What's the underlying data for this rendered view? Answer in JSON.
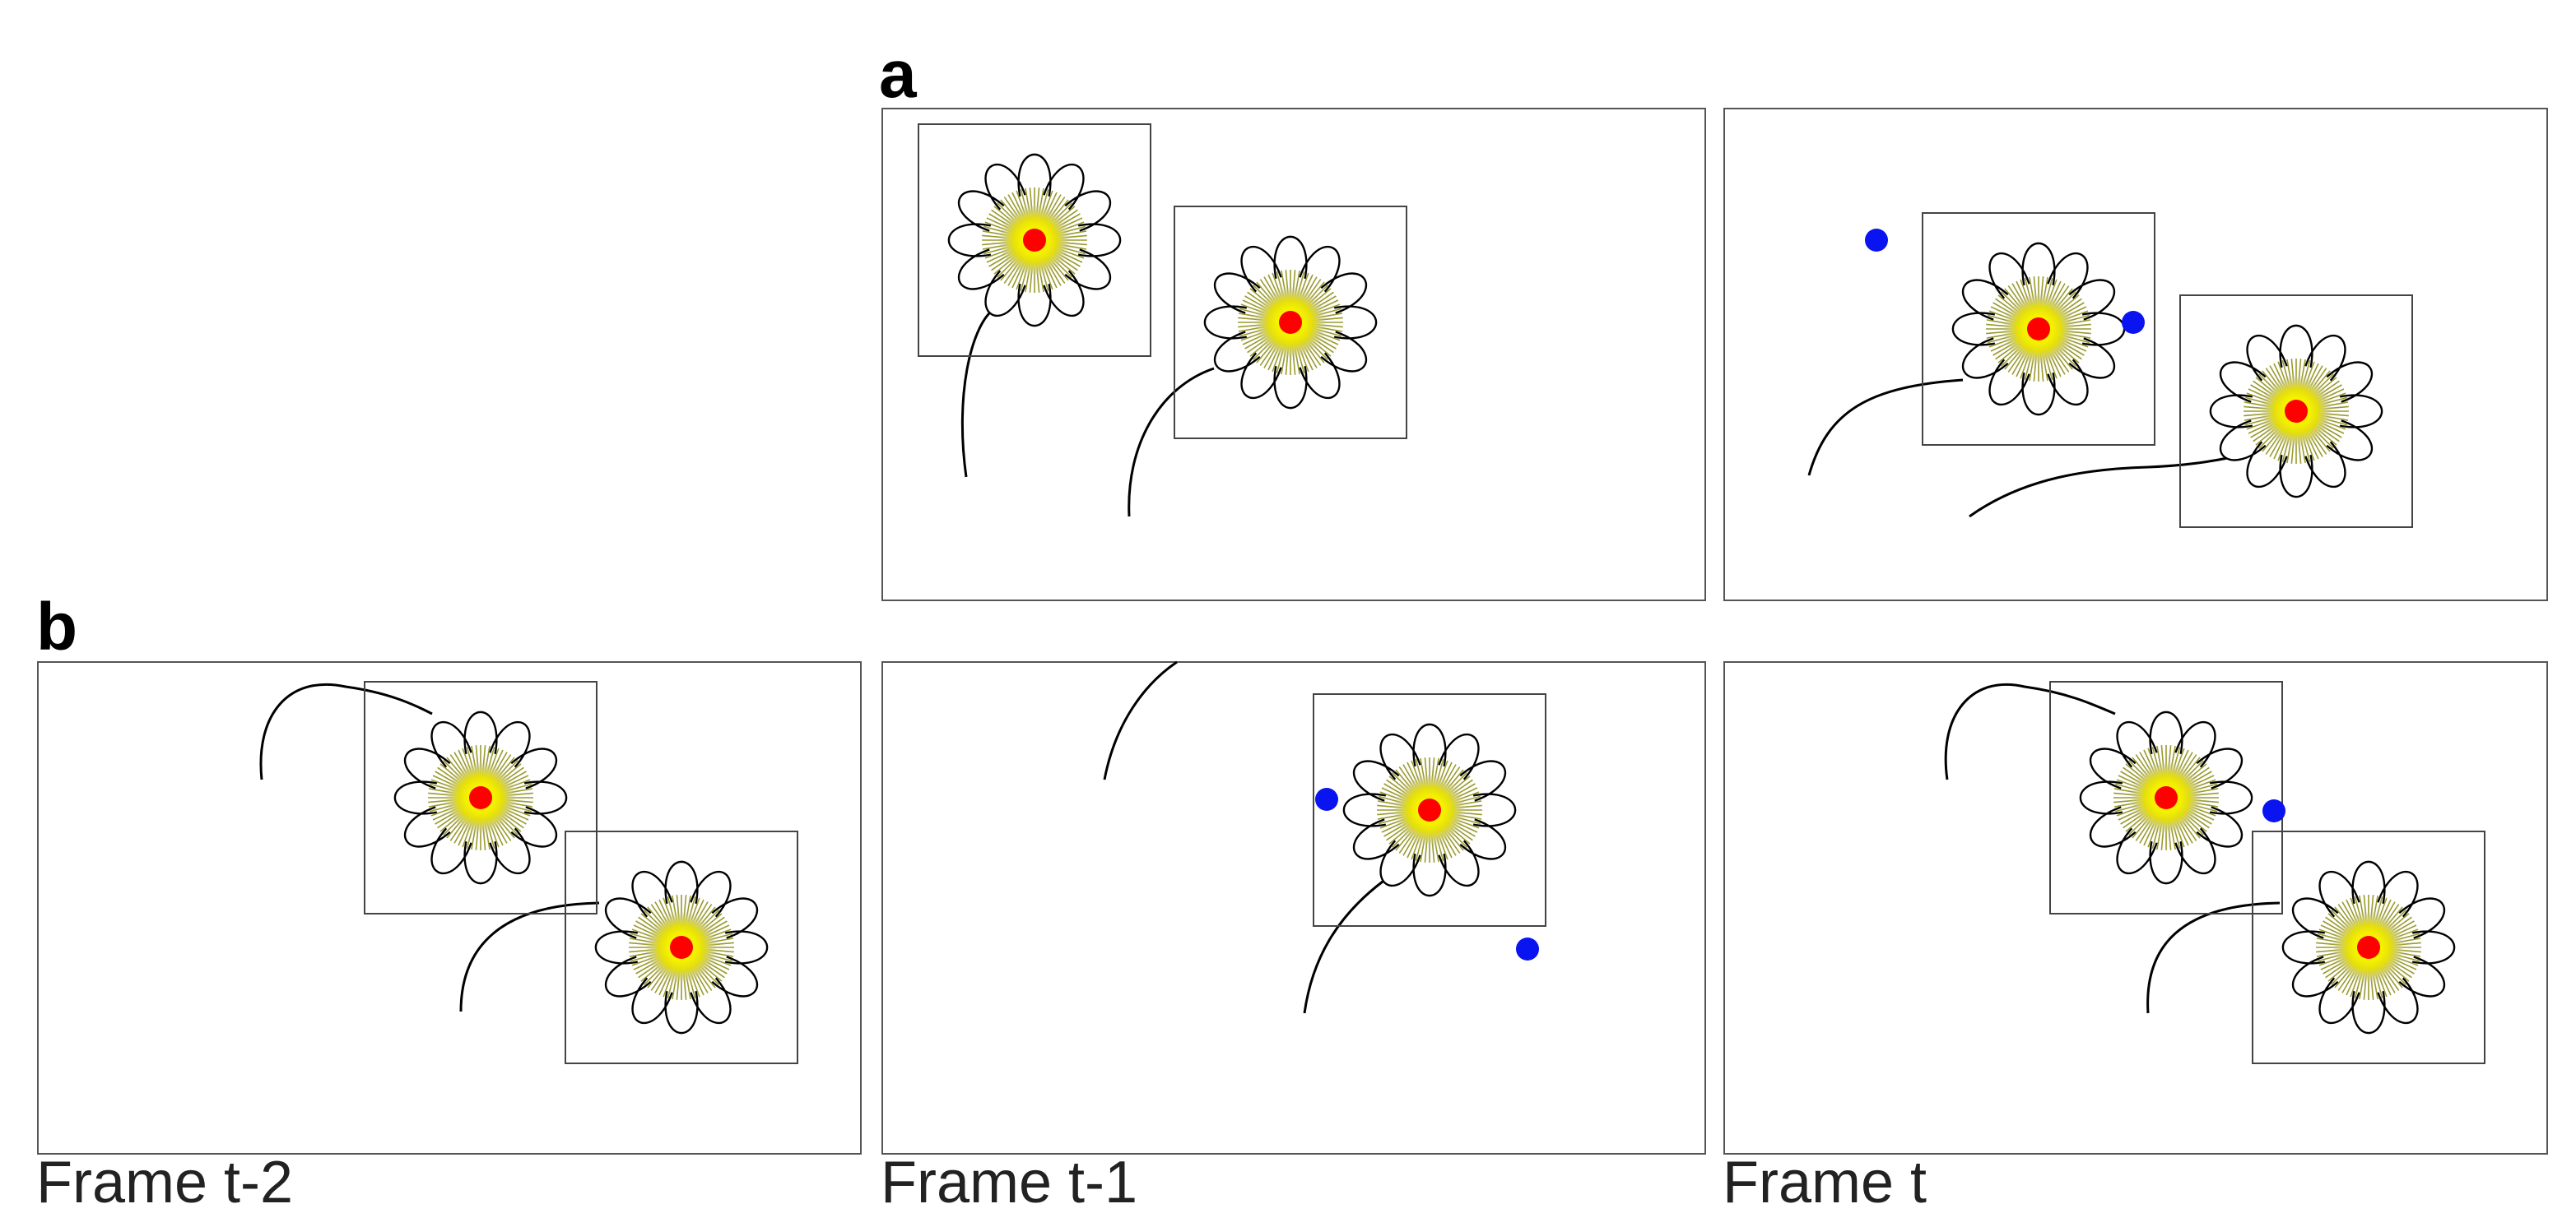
{
  "panels": {
    "a": {
      "label": "a"
    },
    "b": {
      "label": "b"
    }
  },
  "frames": [
    {
      "id": "b-t2",
      "row": "b",
      "caption": "Frame t-2"
    },
    {
      "id": "b-t1",
      "row": "b",
      "caption": "Frame t-1"
    },
    {
      "id": "b-t0",
      "row": "b",
      "caption": "Frame t"
    }
  ],
  "colors": {
    "flower_center": "#ff0000",
    "flower_disc": "#e8e400",
    "detection_dot": "#0a14f0",
    "stem": "#000000"
  }
}
